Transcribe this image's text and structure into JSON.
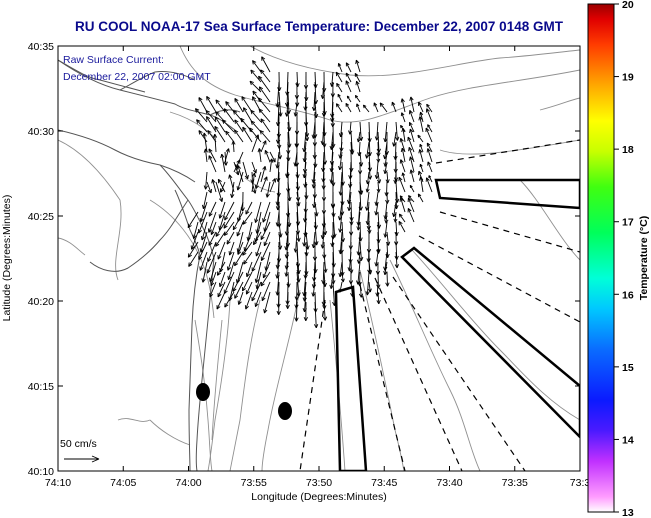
{
  "title": "RU COOL  NOAA-17  Sea Surface Temperature:  December 22, 2007 0148 GMT",
  "annotation": {
    "line1": "Raw Surface Current:",
    "line2": "December 22, 2007 02:00 GMT"
  },
  "scale_label": "50 cm/s",
  "x_axis": {
    "label": "Longitude (Degrees:Minutes)",
    "ticks": [
      "74:10",
      "74:05",
      "74:00",
      "73:55",
      "73:50",
      "73:45",
      "73:40",
      "73:35",
      "73:3"
    ]
  },
  "y_axis": {
    "label": "Latitude (Degrees:Minutes)",
    "ticks": [
      "40:35",
      "40:30",
      "40:25",
      "40:20",
      "40:15",
      "40:10"
    ]
  },
  "colorbar": {
    "label": "Temperature (°C)",
    "min": 13,
    "max": 20,
    "ticks": [
      "20",
      "19",
      "18",
      "17",
      "16",
      "15",
      "14",
      "13"
    ]
  },
  "colors": {
    "title": "#0a0a8c",
    "annotation": "#1a1a9c",
    "contour": "#909090",
    "coast": "#555555",
    "vectors": "#000000"
  }
}
